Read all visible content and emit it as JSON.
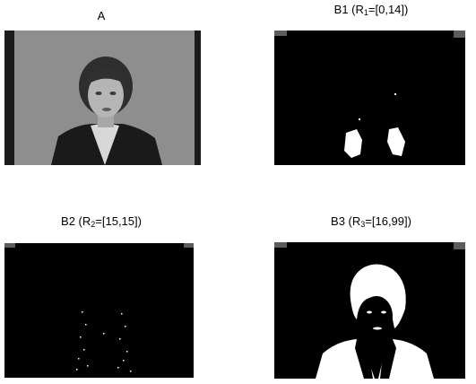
{
  "panels": [
    {
      "id": "A",
      "title": "A",
      "title_sub": "",
      "title_rest": ""
    },
    {
      "id": "B1",
      "title": "B1 (R",
      "title_sub": "1",
      "title_rest": "=[0,14])"
    },
    {
      "id": "B2",
      "title": "B2 (R",
      "title_sub": "2",
      "title_rest": "=[15,15])"
    },
    {
      "id": "B3",
      "title": "B3 (R",
      "title_sub": "3",
      "title_rest": "=[16,99])"
    }
  ]
}
